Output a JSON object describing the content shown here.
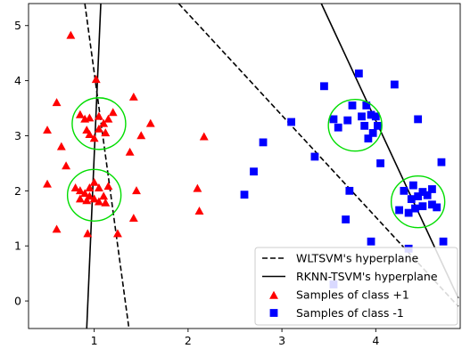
{
  "chart_data": {
    "type": "scatter",
    "title": "",
    "xlabel": "",
    "ylabel": "",
    "xlim": [
      0.3,
      4.9
    ],
    "ylim": [
      -0.5,
      5.4
    ],
    "x_ticks": [
      1,
      2,
      3,
      4
    ],
    "y_ticks": [
      0,
      1,
      2,
      3,
      4,
      5
    ],
    "grid": false,
    "legend_position": "bottom-right",
    "series": [
      {
        "name": "Samples of class +1",
        "marker": "triangle",
        "color": "#ff0000",
        "points": [
          [
            0.75,
            4.82
          ],
          [
            1.02,
            4.02
          ],
          [
            0.6,
            3.6
          ],
          [
            0.5,
            3.1
          ],
          [
            0.65,
            2.8
          ],
          [
            0.7,
            2.45
          ],
          [
            0.5,
            2.12
          ],
          [
            0.9,
            3.3
          ],
          [
            0.85,
            3.38
          ],
          [
            0.95,
            3.32
          ],
          [
            1.05,
            3.35
          ],
          [
            1.15,
            3.3
          ],
          [
            1.2,
            3.42
          ],
          [
            0.92,
            3.1
          ],
          [
            1.05,
            3.12
          ],
          [
            1.12,
            3.05
          ],
          [
            0.95,
            3.02
          ],
          [
            1.0,
            2.95
          ],
          [
            1.1,
            3.22
          ],
          [
            0.8,
            2.05
          ],
          [
            0.85,
            2.0
          ],
          [
            0.9,
            1.95
          ],
          [
            0.95,
            2.05
          ],
          [
            1.0,
            2.15
          ],
          [
            1.05,
            2.05
          ],
          [
            1.1,
            1.9
          ],
          [
            1.15,
            2.08
          ],
          [
            0.85,
            1.85
          ],
          [
            0.92,
            1.82
          ],
          [
            1.05,
            1.8
          ],
          [
            1.12,
            1.78
          ],
          [
            0.95,
            1.9
          ],
          [
            1.0,
            1.85
          ],
          [
            1.42,
            3.7
          ],
          [
            1.6,
            3.22
          ],
          [
            1.5,
            3.0
          ],
          [
            1.38,
            2.7
          ],
          [
            1.45,
            2.0
          ],
          [
            1.42,
            1.5
          ],
          [
            0.6,
            1.3
          ],
          [
            0.93,
            1.22
          ],
          [
            1.25,
            1.22
          ],
          [
            2.1,
            2.04
          ],
          [
            2.12,
            1.63
          ],
          [
            2.17,
            2.98
          ]
        ]
      },
      {
        "name": "Samples of class -1",
        "marker": "square",
        "color": "#0000ff",
        "points": [
          [
            2.6,
            1.93
          ],
          [
            2.7,
            2.35
          ],
          [
            2.8,
            2.88
          ],
          [
            3.1,
            3.25
          ],
          [
            3.35,
            2.62
          ],
          [
            3.45,
            3.9
          ],
          [
            3.55,
            3.3
          ],
          [
            3.6,
            3.15
          ],
          [
            3.7,
            3.28
          ],
          [
            3.75,
            3.55
          ],
          [
            3.82,
            4.13
          ],
          [
            3.85,
            3.35
          ],
          [
            3.88,
            3.18
          ],
          [
            3.9,
            3.55
          ],
          [
            3.95,
            3.38
          ],
          [
            3.97,
            3.05
          ],
          [
            3.92,
            2.95
          ],
          [
            4.0,
            3.35
          ],
          [
            4.02,
            3.18
          ],
          [
            4.2,
            3.93
          ],
          [
            4.45,
            3.3
          ],
          [
            4.05,
            2.5
          ],
          [
            3.72,
            2.0
          ],
          [
            3.68,
            1.48
          ],
          [
            3.95,
            1.08
          ],
          [
            4.3,
            2.0
          ],
          [
            4.4,
            2.1
          ],
          [
            4.5,
            1.98
          ],
          [
            4.45,
            1.9
          ],
          [
            4.38,
            1.85
          ],
          [
            4.55,
            1.92
          ],
          [
            4.6,
            2.03
          ],
          [
            4.5,
            1.72
          ],
          [
            4.42,
            1.68
          ],
          [
            4.35,
            1.6
          ],
          [
            4.25,
            1.65
          ],
          [
            4.6,
            1.75
          ],
          [
            4.65,
            1.7
          ],
          [
            4.7,
            2.52
          ],
          [
            4.72,
            1.08
          ],
          [
            4.35,
            0.95
          ],
          [
            3.55,
            0.3
          ]
        ]
      }
    ],
    "hyperplanes": [
      {
        "name": "WLTSVM's hyperplane",
        "style": "dashed",
        "segments": [
          [
            [
              0.9,
              5.4
            ],
            [
              1.37,
              -0.5
            ]
          ],
          [
            [
              1.9,
              5.4
            ],
            [
              4.88,
              -0.1
            ]
          ]
        ]
      },
      {
        "name": "RKNN-TSVM's hyperplane",
        "style": "solid",
        "segments": [
          [
            [
              1.07,
              5.4
            ],
            [
              0.92,
              -0.5
            ]
          ],
          [
            [
              3.42,
              5.4
            ],
            [
              4.88,
              0.05
            ]
          ]
        ]
      }
    ],
    "highlight_circles": [
      {
        "center": [
          1.05,
          3.22
        ],
        "color": "#00dd00"
      },
      {
        "center": [
          1.0,
          1.92
        ],
        "color": "#00dd00"
      },
      {
        "center": [
          3.78,
          3.19
        ],
        "color": "#00dd00"
      },
      {
        "center": [
          4.45,
          1.8
        ],
        "color": "#00dd00"
      }
    ],
    "legend": [
      {
        "label": "WLTSVM's hyperplane",
        "kind": "dashed-line"
      },
      {
        "label": "RKNN-TSVM's hyperplane",
        "kind": "solid-line"
      },
      {
        "label": "Samples of class +1",
        "kind": "red-triangle"
      },
      {
        "label": "Samples of class -1",
        "kind": "blue-square"
      }
    ]
  }
}
